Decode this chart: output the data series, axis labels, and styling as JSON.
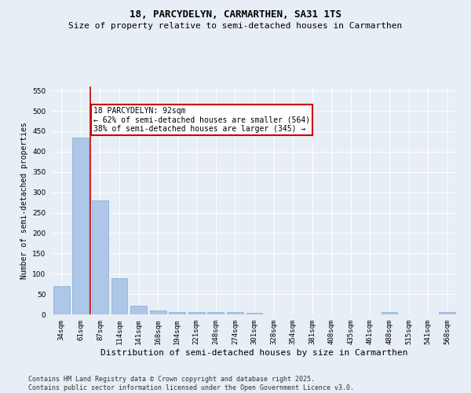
{
  "title": "18, PARCYDELYN, CARMARTHEN, SA31 1TS",
  "subtitle": "Size of property relative to semi-detached houses in Carmarthen",
  "xlabel": "Distribution of semi-detached houses by size in Carmarthen",
  "ylabel": "Number of semi-detached properties",
  "categories": [
    "34sqm",
    "61sqm",
    "87sqm",
    "114sqm",
    "141sqm",
    "168sqm",
    "194sqm",
    "221sqm",
    "248sqm",
    "274sqm",
    "301sqm",
    "328sqm",
    "354sqm",
    "381sqm",
    "408sqm",
    "435sqm",
    "461sqm",
    "488sqm",
    "515sqm",
    "541sqm",
    "568sqm"
  ],
  "values": [
    70,
    435,
    280,
    88,
    22,
    10,
    5,
    5,
    5,
    5,
    3,
    0,
    0,
    0,
    0,
    0,
    0,
    5,
    0,
    0,
    5
  ],
  "bar_color": "#aec6e8",
  "bar_edge_color": "#7aadd4",
  "vline_x_index": 2,
  "vline_color": "#cc0000",
  "annotation_text": "18 PARCYDELYN: 92sqm\n← 62% of semi-detached houses are smaller (564)\n38% of semi-detached houses are larger (345) →",
  "annotation_box_color": "#ffffff",
  "annotation_box_edge_color": "#cc0000",
  "ylim": [
    0,
    560
  ],
  "yticks": [
    0,
    50,
    100,
    150,
    200,
    250,
    300,
    350,
    400,
    450,
    500,
    550
  ],
  "bg_color": "#e8eef5",
  "plot_bg_color": "#e8eef5",
  "footer_text": "Contains HM Land Registry data © Crown copyright and database right 2025.\nContains public sector information licensed under the Open Government Licence v3.0.",
  "title_fontsize": 9,
  "subtitle_fontsize": 8,
  "xlabel_fontsize": 8,
  "ylabel_fontsize": 7,
  "tick_fontsize": 6.5,
  "footer_fontsize": 6,
  "annotation_fontsize": 7
}
